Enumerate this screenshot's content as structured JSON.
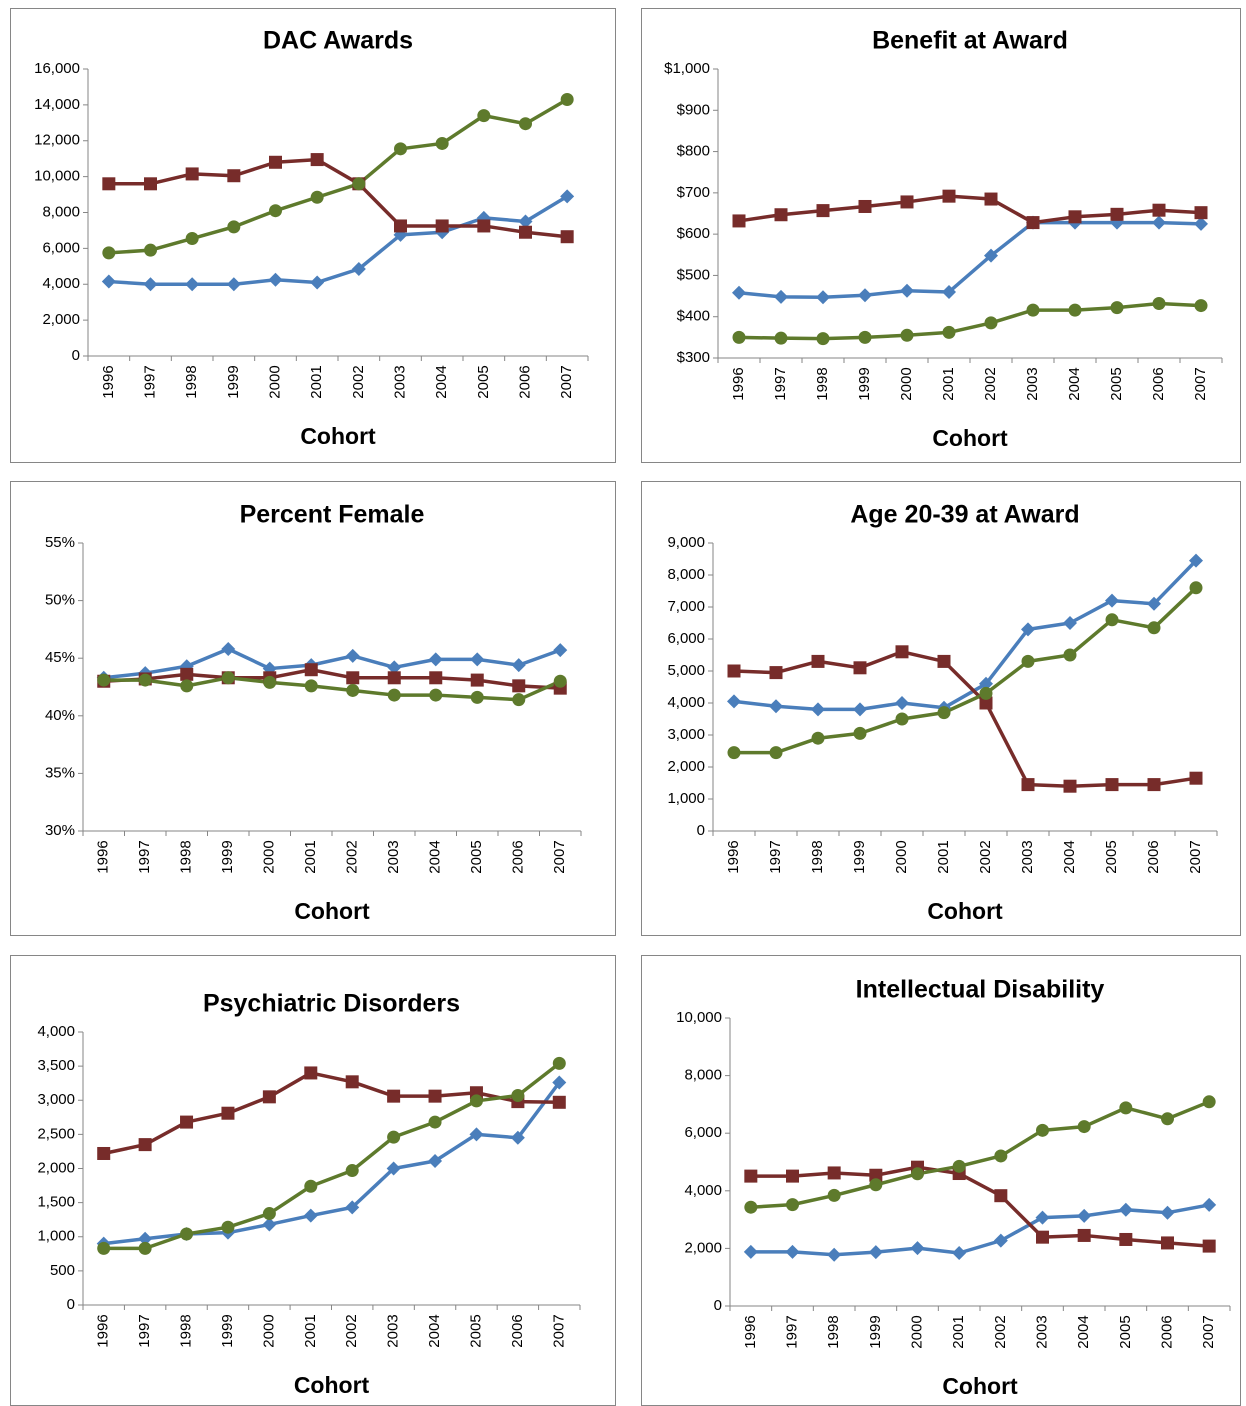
{
  "chart_data": [
    {
      "type": "line",
      "title": "DAC Awards",
      "xlabel": "Cohort",
      "categories": [
        "1996",
        "1997",
        "1998",
        "1999",
        "2000",
        "2001",
        "2002",
        "2003",
        "2004",
        "2005",
        "2006",
        "2007"
      ],
      "ylim": [
        0,
        16000
      ],
      "yticks": [
        0,
        {
          "value": 2000,
          "label": "2,000"
        },
        {
          "value": 4000,
          "label": "4,000"
        },
        {
          "value": 6000,
          "label": "6,000"
        },
        {
          "value": 8000,
          "label": "8,000"
        },
        {
          "value": 10000,
          "label": "10,000"
        },
        {
          "value": 12000,
          "label": "12,000"
        },
        {
          "value": 14000,
          "label": "14,000"
        },
        {
          "value": 16000,
          "label": "16,000"
        }
      ],
      "series": [
        {
          "color": "#4a7ebb",
          "marker": "diamond",
          "values": [
            4150,
            4000,
            4000,
            4000,
            4250,
            4100,
            4850,
            6750,
            6900,
            7700,
            7500,
            8900
          ]
        },
        {
          "color": "#772c2a",
          "marker": "square",
          "values": [
            9600,
            9600,
            10150,
            10050,
            10800,
            10950,
            9600,
            7250,
            7250,
            7250,
            6900,
            6650
          ]
        },
        {
          "color": "#5e7a2c",
          "marker": "circle",
          "values": [
            5750,
            5900,
            6550,
            7200,
            8100,
            8850,
            9600,
            11550,
            11850,
            13400,
            12950,
            14300
          ]
        }
      ]
    },
    {
      "type": "line",
      "title": "Benefit at Award",
      "xlabel": "Cohort",
      "categories": [
        "1996",
        "1997",
        "1998",
        "1999",
        "2000",
        "2001",
        "2002",
        "2003",
        "2004",
        "2005",
        "2006",
        "2007"
      ],
      "ylim": [
        300,
        1000
      ],
      "yticks": [
        {
          "value": 300,
          "label": "$300"
        },
        {
          "value": 400,
          "label": "$400"
        },
        {
          "value": 500,
          "label": "$500"
        },
        {
          "value": 600,
          "label": "$600"
        },
        {
          "value": 700,
          "label": "$700"
        },
        {
          "value": 800,
          "label": "$800"
        },
        {
          "value": 900,
          "label": "$900"
        },
        {
          "value": 1000,
          "label": "$1,000"
        }
      ],
      "series": [
        {
          "color": "#4a7ebb",
          "marker": "diamond",
          "values": [
            458,
            448,
            447,
            452,
            463,
            460,
            548,
            628,
            628,
            628,
            628,
            625
          ]
        },
        {
          "color": "#772c2a",
          "marker": "square",
          "values": [
            632,
            647,
            657,
            667,
            678,
            692,
            685,
            628,
            642,
            648,
            658,
            652
          ]
        },
        {
          "color": "#5e7a2c",
          "marker": "circle",
          "values": [
            350,
            348,
            347,
            350,
            355,
            362,
            385,
            416,
            416,
            422,
            432,
            427
          ]
        }
      ]
    },
    {
      "type": "line",
      "title": "Percent Female",
      "xlabel": "Cohort",
      "categories": [
        "1996",
        "1997",
        "1998",
        "1999",
        "2000",
        "2001",
        "2002",
        "2003",
        "2004",
        "2005",
        "2006",
        "2007"
      ],
      "ylim": [
        30,
        55
      ],
      "yticks": [
        {
          "value": 30,
          "label": "30%"
        },
        {
          "value": 35,
          "label": "35%"
        },
        {
          "value": 40,
          "label": "40%"
        },
        {
          "value": 45,
          "label": "45%"
        },
        {
          "value": 50,
          "label": "50%"
        },
        {
          "value": 55,
          "label": "55%"
        }
      ],
      "series": [
        {
          "color": "#4a7ebb",
          "marker": "diamond",
          "values": [
            43.3,
            43.7,
            44.3,
            45.8,
            44.1,
            44.4,
            45.2,
            44.2,
            44.9,
            44.9,
            44.4,
            45.7
          ]
        },
        {
          "color": "#772c2a",
          "marker": "square",
          "values": [
            43.0,
            43.2,
            43.6,
            43.3,
            43.3,
            44.0,
            43.3,
            43.3,
            43.3,
            43.1,
            42.6,
            42.4
          ]
        },
        {
          "color": "#5e7a2c",
          "marker": "circle",
          "values": [
            43.1,
            43.1,
            42.6,
            43.3,
            42.9,
            42.6,
            42.2,
            41.8,
            41.8,
            41.6,
            41.4,
            43.0
          ]
        }
      ]
    },
    {
      "type": "line",
      "title": "Age 20-39 at Award",
      "xlabel": "Cohort",
      "categories": [
        "1996",
        "1997",
        "1998",
        "1999",
        "2000",
        "2001",
        "2002",
        "2003",
        "2004",
        "2005",
        "2006",
        "2007"
      ],
      "ylim": [
        0,
        9000
      ],
      "yticks": [
        0,
        {
          "value": 1000,
          "label": "1,000"
        },
        {
          "value": 2000,
          "label": "2,000"
        },
        {
          "value": 3000,
          "label": "3,000"
        },
        {
          "value": 4000,
          "label": "4,000"
        },
        {
          "value": 5000,
          "label": "5,000"
        },
        {
          "value": 6000,
          "label": "6,000"
        },
        {
          "value": 7000,
          "label": "7,000"
        },
        {
          "value": 8000,
          "label": "8,000"
        },
        {
          "value": 9000,
          "label": "9,000"
        }
      ],
      "series": [
        {
          "color": "#4a7ebb",
          "marker": "diamond",
          "values": [
            4050,
            3900,
            3800,
            3800,
            4000,
            3850,
            4600,
            6300,
            6500,
            7200,
            7100,
            8450
          ]
        },
        {
          "color": "#772c2a",
          "marker": "square",
          "values": [
            5000,
            4950,
            5300,
            5100,
            5600,
            5300,
            4000,
            1450,
            1400,
            1450,
            1450,
            1650
          ]
        },
        {
          "color": "#5e7a2c",
          "marker": "circle",
          "values": [
            2450,
            2450,
            2900,
            3050,
            3500,
            3700,
            4300,
            5300,
            5500,
            6600,
            6350,
            7600
          ]
        }
      ]
    },
    {
      "type": "line",
      "title": "Psychiatric Disorders",
      "xlabel": "Cohort",
      "categories": [
        "1996",
        "1997",
        "1998",
        "1999",
        "2000",
        "2001",
        "2002",
        "2003",
        "2004",
        "2005",
        "2006",
        "2007"
      ],
      "ylim": [
        0,
        4000
      ],
      "yticks": [
        0,
        500,
        {
          "value": 1000,
          "label": "1,000"
        },
        {
          "value": 1500,
          "label": "1,500"
        },
        {
          "value": 2000,
          "label": "2,000"
        },
        {
          "value": 2500,
          "label": "2,500"
        },
        {
          "value": 3000,
          "label": "3,000"
        },
        {
          "value": 3500,
          "label": "3,500"
        },
        {
          "value": 4000,
          "label": "4,000"
        }
      ],
      "series": [
        {
          "color": "#4a7ebb",
          "marker": "diamond",
          "values": [
            900,
            970,
            1040,
            1060,
            1180,
            1310,
            1430,
            2000,
            2110,
            2500,
            2450,
            3260
          ]
        },
        {
          "color": "#772c2a",
          "marker": "square",
          "values": [
            2220,
            2350,
            2680,
            2810,
            3050,
            3400,
            3270,
            3060,
            3060,
            3110,
            2980,
            2970
          ]
        },
        {
          "color": "#5e7a2c",
          "marker": "circle",
          "values": [
            830,
            830,
            1040,
            1140,
            1340,
            1740,
            1970,
            2460,
            2680,
            2990,
            3070,
            3540
          ]
        }
      ]
    },
    {
      "type": "line",
      "title": "Intellectual Disability",
      "xlabel": "Cohort",
      "categories": [
        "1996",
        "1997",
        "1998",
        "1999",
        "2000",
        "2001",
        "2002",
        "2003",
        "2004",
        "2005",
        "2006",
        "2007"
      ],
      "ylim": [
        0,
        10000
      ],
      "yticks": [
        0,
        {
          "value": 2000,
          "label": "2,000"
        },
        {
          "value": 4000,
          "label": "4,000"
        },
        {
          "value": 6000,
          "label": "6,000"
        },
        {
          "value": 8000,
          "label": "8,000"
        },
        {
          "value": 10000,
          "label": "10,000"
        }
      ],
      "series": [
        {
          "color": "#4a7ebb",
          "marker": "diamond",
          "values": [
            1880,
            1880,
            1780,
            1870,
            2010,
            1840,
            2270,
            3070,
            3130,
            3340,
            3240,
            3510
          ]
        },
        {
          "color": "#772c2a",
          "marker": "square",
          "values": [
            4510,
            4510,
            4620,
            4540,
            4820,
            4600,
            3830,
            2390,
            2450,
            2310,
            2190,
            2080
          ]
        },
        {
          "color": "#5e7a2c",
          "marker": "circle",
          "values": [
            3430,
            3520,
            3840,
            4210,
            4590,
            4850,
            5210,
            6100,
            6230,
            6880,
            6500,
            7090
          ]
        }
      ]
    }
  ]
}
